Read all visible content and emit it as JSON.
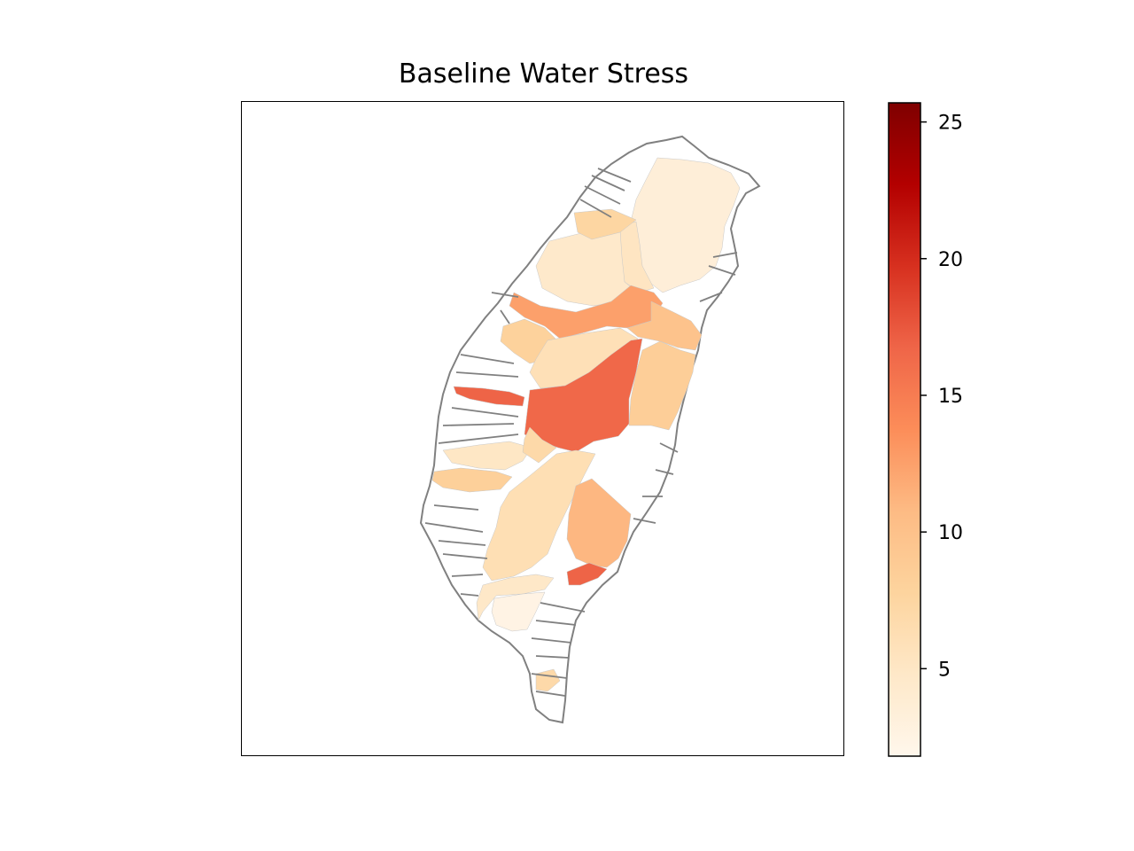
{
  "title": "Baseline Water Stress",
  "colorbar": {
    "colormap": "OrRd",
    "range": [
      1.8,
      25.7
    ],
    "ticks": [
      5,
      10,
      15,
      20,
      25
    ],
    "tick_labels": [
      "5",
      "10",
      "15",
      "20",
      "25"
    ]
  },
  "colors": {
    "outline": "#808080",
    "frame": "#000000",
    "no_data": "#ffffff"
  },
  "regions": [
    {
      "id": "north-basin",
      "value": 3.5
    },
    {
      "id": "taipei-west",
      "value": 5.2
    },
    {
      "id": "taoyuan-hsinchu",
      "value": 4.5
    },
    {
      "id": "hsinchu-upper",
      "value": 7.5
    },
    {
      "id": "miaoli-band",
      "value": 12.5
    },
    {
      "id": "miaoli-east",
      "value": 9.8
    },
    {
      "id": "taichung-coast",
      "value": 8.0
    },
    {
      "id": "taichung-mid",
      "value": 6.0
    },
    {
      "id": "central-highland",
      "value": 16.5
    },
    {
      "id": "changhua-strip",
      "value": 16.8
    },
    {
      "id": "hualien-north",
      "value": 8.5
    },
    {
      "id": "chiayi-west",
      "value": 5.0
    },
    {
      "id": "chiayi-coast",
      "value": 8.2
    },
    {
      "id": "chiayi-east",
      "value": 7.0
    },
    {
      "id": "tainan-north",
      "value": 6.2
    },
    {
      "id": "kaohsiung-east",
      "value": 11.0
    },
    {
      "id": "kaohsiung-south-hot",
      "value": 16.8
    },
    {
      "id": "pingtung-west",
      "value": 4.8
    },
    {
      "id": "pingtung-coast",
      "value": 2.5
    },
    {
      "id": "hengchun",
      "value": 7.0
    }
  ]
}
